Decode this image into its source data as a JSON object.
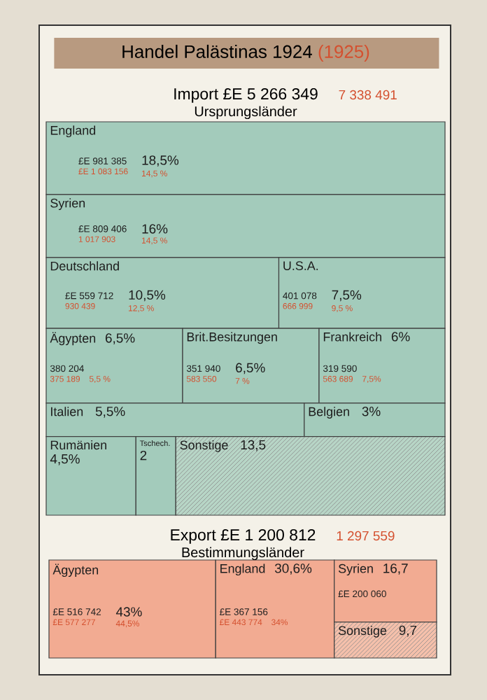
{
  "chart_data": [
    {
      "type": "other",
      "title": "Import £E 5 266 349",
      "subtitle": "Ursprungsländer",
      "annotations": [
        "Handel Palästinas 1924",
        "(1925)",
        "7 338 491",
        {
          "text": "£E 981 385",
          "x": "England"
        },
        {
          "text": "£E 1 083 156",
          "x": "England"
        },
        {
          "text": "14,5 %",
          "x": "England"
        },
        {
          "text": "£E 809 406",
          "x": "Syrien"
        },
        {
          "text": "1 017 903",
          "x": "Syrien"
        },
        {
          "text": "14,5 %",
          "x": "Syrien"
        },
        {
          "text": "£E 559 712",
          "x": "Deutschland"
        },
        {
          "text": "930 439",
          "x": "Deutschland"
        },
        {
          "text": "12,5 %",
          "x": "Deutschland"
        },
        {
          "text": "401 078",
          "x": "U.S.A."
        },
        {
          "text": "666 999",
          "x": "U.S.A."
        },
        {
          "text": "9,5 %",
          "x": "U.S.A."
        },
        {
          "text": "380 204",
          "x": "Ägypten"
        },
        {
          "text": "375 189",
          "x": "Ägypten"
        },
        {
          "text": "5,5 %",
          "x": "Ägypten"
        },
        {
          "text": "351 940",
          "x": "Brit.Besitzungen"
        },
        {
          "text": "583 550",
          "x": "Brit.Besitzungen"
        },
        {
          "text": "7 %",
          "x": "Brit.Besitzungen"
        },
        {
          "text": "319 590",
          "x": "Frankreich"
        },
        {
          "text": "563 689",
          "x": "Frankreich"
        },
        {
          "text": "7,5%",
          "x": "Frankreich"
        }
      ],
      "categories": [
        "England",
        "Syrien",
        "Deutschland",
        "U.S.A.",
        "Ägypten",
        "Brit.Besitzungen",
        "Frankreich",
        "Italien",
        "Belgien",
        "Rumänien",
        "Tschech.",
        "Sonstige"
      ],
      "values": [
        18.5,
        16,
        10.5,
        7.5,
        6.5,
        6.5,
        6,
        5.5,
        3,
        4.5,
        2,
        13.5
      ],
      "value_labels": [
        "18,5%",
        "16%",
        "10,5%",
        "7,5%",
        "6,5%",
        "6,5%",
        "6%",
        "5,5%",
        "3%",
        "4,5%",
        "2",
        "13,5"
      ],
      "colors": [
        "#a3cbbb",
        "#a3cbbb",
        "#a3cbbb",
        "#a3cbbb",
        "#a3cbbb",
        "#a3cbbb",
        "#a3cbbb",
        "#a3cbbb",
        "#a3cbbb",
        "#a3cbbb",
        "#a3cbbb",
        "#b7d5c6"
      ]
    },
    {
      "type": "other",
      "title": "Export £E 1 200 812",
      "subtitle": "Bestimmungsländer",
      "annotations": [
        "1 297 559",
        {
          "text": "£E 516 742",
          "x": "Ägypten"
        },
        {
          "text": "£E 577 277",
          "x": "Ägypten"
        },
        {
          "text": "44,5%",
          "x": "Ägypten"
        },
        {
          "text": "£E 367 156",
          "x": "England"
        },
        {
          "text": "£E 443 774",
          "x": "England"
        },
        {
          "text": "34%",
          "x": "England"
        },
        {
          "text": "£E 200 060",
          "x": "Syrien"
        }
      ],
      "categories": [
        "Ägypten",
        "England",
        "Syrien",
        "Sonstige"
      ],
      "values": [
        43,
        30.6,
        16.7,
        9.7
      ],
      "value_labels": [
        "43%",
        "30,6%",
        "16,7",
        "9,7"
      ],
      "colors": [
        "#f2ab92",
        "#f2ab92",
        "#f2ab92",
        "#f5c0ab"
      ]
    }
  ]
}
